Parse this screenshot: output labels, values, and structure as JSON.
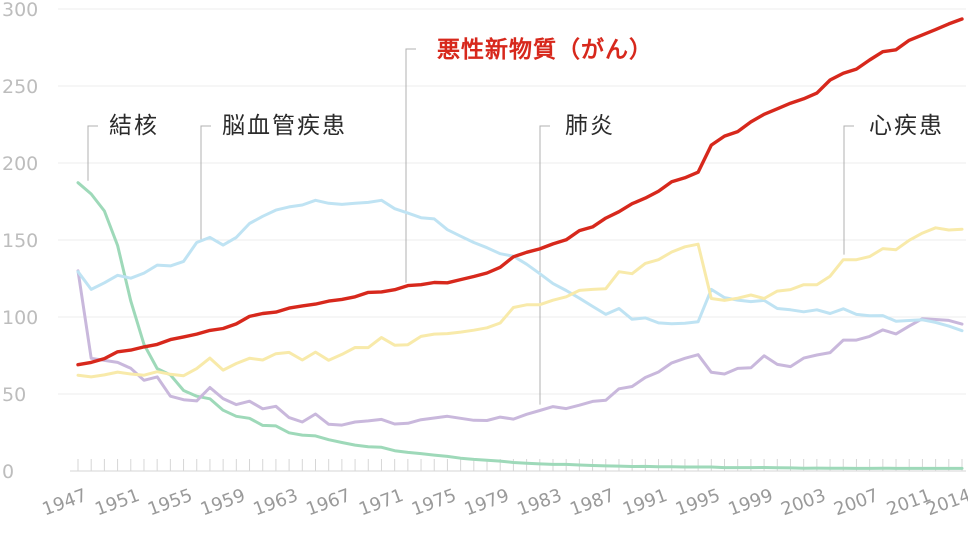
{
  "chart_data": {
    "type": "line",
    "ylim": [
      0,
      300
    ],
    "y_ticks": [
      0,
      50,
      100,
      150,
      200,
      250,
      300
    ],
    "x_range": [
      1947,
      2014
    ],
    "x_ticks": [
      1947,
      1951,
      1955,
      1959,
      1963,
      1967,
      1971,
      1975,
      1979,
      1983,
      1987,
      1991,
      1995,
      1999,
      2003,
      2007,
      2011,
      2014
    ],
    "grid": true,
    "series": [
      {
        "name": "悪性新物質（がん）",
        "color": "#d7281c",
        "x": [
          1947,
          1948,
          1949,
          1950,
          1951,
          1952,
          1953,
          1954,
          1955,
          1956,
          1957,
          1958,
          1959,
          1960,
          1961,
          1962,
          1963,
          1964,
          1965,
          1966,
          1967,
          1968,
          1969,
          1970,
          1971,
          1972,
          1973,
          1974,
          1975,
          1976,
          1977,
          1978,
          1979,
          1980,
          1981,
          1982,
          1983,
          1984,
          1985,
          1986,
          1987,
          1988,
          1989,
          1990,
          1991,
          1992,
          1993,
          1994,
          1995,
          1996,
          1997,
          1998,
          1999,
          2000,
          2001,
          2002,
          2003,
          2004,
          2005,
          2006,
          2007,
          2008,
          2009,
          2010,
          2011,
          2012,
          2013,
          2014
        ],
        "y": [
          69.0,
          70.5,
          73.0,
          77.4,
          78.5,
          80.6,
          82.2,
          85.3,
          87.1,
          88.9,
          91.3,
          92.5,
          95.5,
          100.4,
          102.3,
          103.2,
          105.8,
          107.2,
          108.4,
          110.3,
          111.4,
          113.1,
          116.0,
          116.3,
          117.7,
          120.4,
          121.0,
          122.4,
          122.2,
          124.3,
          126.3,
          128.6,
          132.3,
          139.1,
          142.0,
          144.2,
          147.5,
          150.1,
          156.1,
          158.5,
          164.2,
          168.4,
          173.6,
          177.2,
          181.7,
          187.8,
          190.4,
          194.0,
          211.6,
          217.5,
          220.4,
          226.7,
          231.6,
          235.2,
          238.8,
          241.7,
          245.4,
          253.9,
          258.3,
          261.0,
          266.9,
          272.3,
          273.5,
          279.7,
          283.2,
          286.6,
          290.3,
          293.5
        ]
      },
      {
        "name": "脳血管疾患",
        "color": "#bfe3f3",
        "x": [
          1947,
          1948,
          1949,
          1950,
          1951,
          1952,
          1953,
          1954,
          1955,
          1956,
          1957,
          1958,
          1959,
          1960,
          1961,
          1962,
          1963,
          1964,
          1965,
          1966,
          1967,
          1968,
          1969,
          1970,
          1971,
          1972,
          1973,
          1974,
          1975,
          1976,
          1977,
          1978,
          1979,
          1980,
          1981,
          1982,
          1983,
          1984,
          1985,
          1986,
          1987,
          1988,
          1989,
          1990,
          1991,
          1992,
          1993,
          1994,
          1995,
          1996,
          1997,
          1998,
          1999,
          2000,
          2001,
          2002,
          2003,
          2004,
          2005,
          2006,
          2007,
          2008,
          2009,
          2010,
          2011,
          2012,
          2013,
          2014
        ],
        "y": [
          129.4,
          117.9,
          122.2,
          127.1,
          125.2,
          128.5,
          133.7,
          133.2,
          136.1,
          148.4,
          151.7,
          146.7,
          151.7,
          160.7,
          165.4,
          169.4,
          171.5,
          172.7,
          175.8,
          173.8,
          173.1,
          173.8,
          174.4,
          175.8,
          170.3,
          167.5,
          164.5,
          163.7,
          156.7,
          152.5,
          148.4,
          145.0,
          141.1,
          139.5,
          134.3,
          128.1,
          121.7,
          117.2,
          112.2,
          106.9,
          101.7,
          105.5,
          98.5,
          99.4,
          96.2,
          95.6,
          96.0,
          96.9,
          117.9,
          112.6,
          111.0,
          110.0,
          110.8,
          105.5,
          104.7,
          103.4,
          104.7,
          102.3,
          105.3,
          101.7,
          100.8,
          100.9,
          97.2,
          97.7,
          98.2,
          96.5,
          94.1,
          91.1
        ]
      },
      {
        "name": "心疾患",
        "color": "#f8eaaa",
        "x": [
          1947,
          1948,
          1949,
          1950,
          1951,
          1952,
          1953,
          1954,
          1955,
          1956,
          1957,
          1958,
          1959,
          1960,
          1961,
          1962,
          1963,
          1964,
          1965,
          1966,
          1967,
          1968,
          1969,
          1970,
          1971,
          1972,
          1973,
          1974,
          1975,
          1976,
          1977,
          1978,
          1979,
          1980,
          1981,
          1982,
          1983,
          1984,
          1985,
          1986,
          1987,
          1988,
          1989,
          1990,
          1991,
          1992,
          1993,
          1994,
          1995,
          1996,
          1997,
          1998,
          1999,
          2000,
          2001,
          2002,
          2003,
          2004,
          2005,
          2006,
          2007,
          2008,
          2009,
          2010,
          2011,
          2012,
          2013,
          2014
        ],
        "y": [
          62.2,
          61.1,
          62.4,
          64.2,
          63.0,
          62.2,
          64.5,
          62.8,
          61.9,
          66.5,
          73.3,
          65.5,
          69.8,
          73.2,
          72.1,
          76.2,
          77.0,
          72.1,
          77.2,
          71.9,
          75.7,
          80.2,
          80.1,
          86.7,
          81.7,
          82.0,
          87.4,
          88.9,
          89.2,
          90.2,
          91.4,
          93.0,
          96.1,
          106.2,
          107.9,
          108.0,
          110.9,
          113.1,
          117.3,
          117.9,
          118.4,
          129.4,
          128.1,
          134.8,
          137.2,
          142.2,
          145.6,
          147.3,
          112.0,
          110.8,
          112.2,
          114.3,
          112.0,
          116.8,
          117.8,
          121.0,
          121.0,
          126.5,
          137.2,
          137.2,
          139.2,
          144.4,
          143.7,
          149.8,
          154.5,
          157.9,
          156.5,
          157.0
        ]
      },
      {
        "name": "肺炎",
        "color": "#c9b8dc",
        "x": [
          1947,
          1948,
          1949,
          1950,
          1951,
          1952,
          1953,
          1954,
          1955,
          1956,
          1957,
          1958,
          1959,
          1960,
          1961,
          1962,
          1963,
          1964,
          1965,
          1966,
          1967,
          1968,
          1969,
          1970,
          1971,
          1972,
          1973,
          1974,
          1975,
          1976,
          1977,
          1978,
          1979,
          1980,
          1981,
          1982,
          1983,
          1984,
          1985,
          1986,
          1987,
          1988,
          1989,
          1990,
          1991,
          1992,
          1993,
          1994,
          1995,
          1996,
          1997,
          1998,
          1999,
          2000,
          2001,
          2002,
          2003,
          2004,
          2005,
          2006,
          2007,
          2008,
          2009,
          2010,
          2011,
          2012,
          2013,
          2014
        ],
        "y": [
          130.0,
          73.2,
          71.8,
          70.5,
          66.7,
          58.9,
          61.1,
          48.6,
          46.3,
          45.5,
          54.2,
          47.0,
          43.1,
          45.3,
          40.4,
          42.0,
          34.7,
          31.8,
          37.0,
          30.3,
          29.8,
          31.8,
          32.5,
          33.5,
          30.5,
          31.0,
          33.3,
          34.4,
          35.5,
          34.2,
          32.9,
          32.8,
          35.0,
          33.7,
          36.8,
          39.3,
          41.8,
          40.5,
          42.7,
          45.2,
          46.0,
          53.4,
          54.9,
          60.7,
          64.3,
          70.2,
          73.2,
          75.5,
          64.1,
          63.0,
          66.6,
          67.0,
          74.8,
          69.2,
          67.8,
          73.3,
          75.3,
          76.9,
          85.0,
          85.0,
          87.4,
          91.6,
          89.0,
          94.1,
          98.9,
          98.4,
          97.8,
          95.4
        ]
      },
      {
        "name": "結核",
        "color": "#9ed9b9",
        "x": [
          1947,
          1948,
          1949,
          1950,
          1951,
          1952,
          1953,
          1954,
          1955,
          1956,
          1957,
          1958,
          1959,
          1960,
          1961,
          1962,
          1963,
          1964,
          1965,
          1966,
          1967,
          1968,
          1969,
          1970,
          1971,
          1972,
          1973,
          1974,
          1975,
          1976,
          1977,
          1978,
          1979,
          1980,
          1981,
          1982,
          1983,
          1984,
          1985,
          1986,
          1987,
          1988,
          1989,
          1990,
          1991,
          1992,
          1993,
          1994,
          1995,
          1996,
          1997,
          1998,
          1999,
          2000,
          2001,
          2002,
          2003,
          2004,
          2005,
          2006,
          2007,
          2008,
          2009,
          2010,
          2011,
          2012,
          2013,
          2014
        ],
        "y": [
          187.2,
          179.9,
          168.8,
          146.4,
          110.3,
          82.2,
          66.5,
          62.4,
          52.3,
          48.6,
          46.9,
          39.5,
          35.5,
          34.2,
          29.6,
          29.3,
          24.8,
          23.3,
          22.8,
          20.3,
          18.5,
          16.8,
          15.7,
          15.4,
          13.2,
          12.1,
          11.3,
          10.3,
          9.5,
          8.3,
          7.5,
          7.0,
          6.4,
          5.5,
          5.0,
          4.6,
          4.3,
          4.3,
          3.9,
          3.6,
          3.3,
          3.2,
          2.9,
          3.0,
          2.7,
          2.8,
          2.6,
          2.6,
          2.6,
          2.2,
          2.2,
          2.2,
          2.3,
          2.1,
          2.0,
          1.8,
          1.9,
          1.8,
          1.8,
          1.7,
          1.7,
          1.8,
          1.7,
          1.7,
          1.7,
          1.7,
          1.7,
          1.7
        ]
      }
    ],
    "annotations": [
      {
        "text": "結核",
        "series": "結核"
      },
      {
        "text": "脳血管疾患",
        "series": "脳血管疾患"
      },
      {
        "text": "悪性新物質（がん）",
        "series": "悪性新物質（がん）"
      },
      {
        "text": "肺炎",
        "series": "肺炎"
      },
      {
        "text": "心疾患",
        "series": "心疾患"
      }
    ]
  }
}
